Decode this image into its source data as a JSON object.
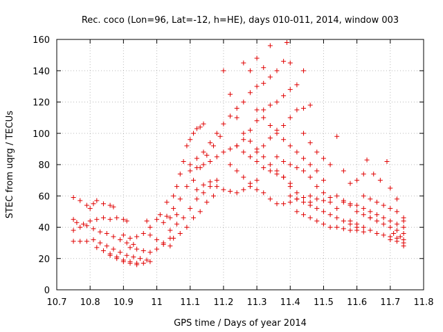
{
  "chart_data": {
    "type": "scatter",
    "title": "Rec. coco (Lon=96, Lat=-12, h=HE), days 010-011, 2014, window 003",
    "xlabel": "GPS time / Days of year 2014",
    "ylabel": "STEC from uqrg / TECUs",
    "xlim": [
      10.7,
      11.8
    ],
    "ylim": [
      0,
      160
    ],
    "xticks": [
      10.7,
      10.8,
      10.9,
      11,
      11.1,
      11.2,
      11.3,
      11.4,
      11.5,
      11.6,
      11.7,
      11.8
    ],
    "xtick_labels": [
      "10.7",
      "10.8",
      "10.9",
      "11",
      "11.1",
      "11.2",
      "11.3",
      "11.4",
      "11.5",
      "11.6",
      "11.7",
      "11.8"
    ],
    "yticks": [
      0,
      20,
      40,
      60,
      80,
      100,
      120,
      140,
      160
    ],
    "ytick_labels": [
      "0",
      "20",
      "40",
      "60",
      "80",
      "100",
      "120",
      "140",
      "160"
    ],
    "grid": true,
    "legend": "none",
    "marker": "plus",
    "color": "#e00000",
    "series": [
      {
        "points": [
          [
            10.75,
            59
          ],
          [
            10.77,
            57
          ],
          [
            10.79,
            54
          ],
          [
            10.81,
            55
          ],
          [
            10.8,
            52
          ],
          [
            10.82,
            57
          ],
          [
            10.84,
            55
          ],
          [
            10.86,
            54
          ],
          [
            10.87,
            53
          ],
          [
            10.75,
            45
          ],
          [
            10.76,
            43
          ],
          [
            10.78,
            42
          ],
          [
            10.8,
            44
          ],
          [
            10.82,
            45
          ],
          [
            10.84,
            46
          ],
          [
            10.86,
            45
          ],
          [
            10.88,
            46
          ],
          [
            10.9,
            45
          ],
          [
            10.91,
            44
          ],
          [
            10.75,
            38
          ],
          [
            10.77,
            40
          ],
          [
            10.79,
            41
          ],
          [
            10.81,
            39
          ],
          [
            10.83,
            37
          ],
          [
            10.85,
            36
          ],
          [
            10.87,
            34
          ],
          [
            10.89,
            32
          ],
          [
            10.91,
            30
          ],
          [
            10.93,
            29
          ],
          [
            10.75,
            31
          ],
          [
            10.77,
            31
          ],
          [
            10.79,
            31
          ],
          [
            10.81,
            32
          ],
          [
            10.83,
            30
          ],
          [
            10.85,
            28
          ],
          [
            10.87,
            26
          ],
          [
            10.89,
            24
          ],
          [
            10.91,
            22
          ],
          [
            10.93,
            21
          ],
          [
            10.95,
            20
          ],
          [
            10.86,
            23
          ],
          [
            10.88,
            21
          ],
          [
            10.9,
            19
          ],
          [
            10.92,
            18
          ],
          [
            10.94,
            17
          ],
          [
            10.96,
            17
          ],
          [
            10.98,
            18
          ],
          [
            10.97,
            19
          ],
          [
            10.82,
            27
          ],
          [
            10.84,
            25
          ],
          [
            10.86,
            22
          ],
          [
            10.88,
            20
          ],
          [
            10.9,
            18
          ],
          [
            10.92,
            17
          ],
          [
            10.94,
            16
          ],
          [
            10.9,
            35
          ],
          [
            10.92,
            33
          ],
          [
            10.94,
            34
          ],
          [
            10.96,
            36
          ],
          [
            10.98,
            35
          ],
          [
            11,
            32
          ],
          [
            11.02,
            30
          ],
          [
            11.04,
            28
          ],
          [
            10.92,
            27
          ],
          [
            10.94,
            26
          ],
          [
            10.96,
            25
          ],
          [
            10.98,
            24
          ],
          [
            11,
            26
          ],
          [
            11.02,
            29
          ],
          [
            11.04,
            33
          ],
          [
            10.97,
            44
          ],
          [
            10.98,
            40
          ],
          [
            11,
            45
          ],
          [
            11.02,
            43
          ],
          [
            11.04,
            46
          ],
          [
            11.06,
            48
          ],
          [
            11.01,
            48
          ],
          [
            11.03,
            56
          ],
          [
            11.05,
            60
          ],
          [
            11.06,
            66
          ],
          [
            11.07,
            74
          ],
          [
            11.08,
            82
          ],
          [
            11.09,
            92
          ],
          [
            11.1,
            96
          ],
          [
            11.11,
            100
          ],
          [
            11.12,
            103
          ],
          [
            11.13,
            104
          ],
          [
            11.14,
            106
          ],
          [
            11.03,
            47
          ],
          [
            11.05,
            52
          ],
          [
            11.07,
            58
          ],
          [
            11.09,
            66
          ],
          [
            11.11,
            70
          ],
          [
            11.13,
            78
          ],
          [
            11.15,
            86
          ],
          [
            11.17,
            92
          ],
          [
            11.19,
            98
          ],
          [
            11.04,
            38
          ],
          [
            11.06,
            42
          ],
          [
            11.08,
            46
          ],
          [
            11.1,
            52
          ],
          [
            11.12,
            58
          ],
          [
            11.14,
            62
          ],
          [
            11.16,
            66
          ],
          [
            11.18,
            70
          ],
          [
            11.05,
            33
          ],
          [
            11.07,
            36
          ],
          [
            11.09,
            40
          ],
          [
            11.11,
            46
          ],
          [
            11.13,
            50
          ],
          [
            11.15,
            56
          ],
          [
            11.17,
            60
          ],
          [
            11.1,
            80
          ],
          [
            11.12,
            84
          ],
          [
            11.14,
            88
          ],
          [
            11.16,
            94
          ],
          [
            11.18,
            100
          ],
          [
            11.2,
            106
          ],
          [
            11.22,
            111
          ],
          [
            11.24,
            116
          ],
          [
            11.26,
            120
          ],
          [
            11.28,
            126
          ],
          [
            11.3,
            130
          ],
          [
            11.32,
            132
          ],
          [
            11.34,
            136
          ],
          [
            11.1,
            76
          ],
          [
            11.12,
            78
          ],
          [
            11.14,
            80
          ],
          [
            11.16,
            82
          ],
          [
            11.18,
            85
          ],
          [
            11.2,
            88
          ],
          [
            11.22,
            90
          ],
          [
            11.24,
            92
          ],
          [
            11.12,
            64
          ],
          [
            11.14,
            67
          ],
          [
            11.16,
            69
          ],
          [
            11.18,
            66
          ],
          [
            11.2,
            64
          ],
          [
            11.22,
            63
          ],
          [
            11.24,
            62
          ],
          [
            11.26,
            64
          ],
          [
            11.28,
            66
          ],
          [
            11.3,
            70
          ],
          [
            11.2,
            140
          ],
          [
            11.22,
            125
          ],
          [
            11.24,
            110
          ],
          [
            11.26,
            100
          ],
          [
            11.28,
            95
          ],
          [
            11.3,
            90
          ],
          [
            11.32,
            85
          ],
          [
            11.34,
            80
          ],
          [
            11.36,
            76
          ],
          [
            11.38,
            72
          ],
          [
            11.4,
            68
          ],
          [
            11.26,
            145
          ],
          [
            11.28,
            140
          ],
          [
            11.3,
            148
          ],
          [
            11.32,
            142
          ],
          [
            11.34,
            156
          ],
          [
            11.36,
            140
          ],
          [
            11.38,
            146
          ],
          [
            11.39,
            158
          ],
          [
            11.4,
            145
          ],
          [
            11.24,
            92
          ],
          [
            11.26,
            96
          ],
          [
            11.28,
            102
          ],
          [
            11.3,
            108
          ],
          [
            11.32,
            115
          ],
          [
            11.34,
            118
          ],
          [
            11.36,
            120
          ],
          [
            11.38,
            124
          ],
          [
            11.4,
            128
          ],
          [
            11.42,
            131
          ],
          [
            11.44,
            140
          ],
          [
            11.3,
            115
          ],
          [
            11.32,
            110
          ],
          [
            11.34,
            105
          ],
          [
            11.36,
            100
          ],
          [
            11.38,
            96
          ],
          [
            11.4,
            92
          ],
          [
            11.42,
            88
          ],
          [
            11.44,
            84
          ],
          [
            11.46,
            80
          ],
          [
            11.48,
            76
          ],
          [
            11.5,
            70
          ],
          [
            11.26,
            88
          ],
          [
            11.28,
            85
          ],
          [
            11.3,
            82
          ],
          [
            11.32,
            78
          ],
          [
            11.34,
            76
          ],
          [
            11.36,
            74
          ],
          [
            11.38,
            72
          ],
          [
            11.4,
            66
          ],
          [
            11.42,
            62
          ],
          [
            11.44,
            59
          ],
          [
            11.46,
            56
          ],
          [
            11.22,
            80
          ],
          [
            11.24,
            76
          ],
          [
            11.26,
            72
          ],
          [
            11.28,
            68
          ],
          [
            11.3,
            64
          ],
          [
            11.32,
            62
          ],
          [
            11.34,
            58
          ],
          [
            11.36,
            55
          ],
          [
            11.38,
            55
          ],
          [
            11.4,
            56
          ],
          [
            11.42,
            58
          ],
          [
            11.3,
            88
          ],
          [
            11.32,
            92
          ],
          [
            11.34,
            97
          ],
          [
            11.36,
            102
          ],
          [
            11.38,
            105
          ],
          [
            11.4,
            110
          ],
          [
            11.42,
            115
          ],
          [
            11.44,
            116
          ],
          [
            11.46,
            118
          ],
          [
            11.36,
            85
          ],
          [
            11.38,
            82
          ],
          [
            11.4,
            80
          ],
          [
            11.42,
            78
          ],
          [
            11.44,
            76
          ],
          [
            11.46,
            72
          ],
          [
            11.48,
            66
          ],
          [
            11.5,
            62
          ],
          [
            11.52,
            56
          ],
          [
            11.54,
            52
          ],
          [
            11.4,
            60
          ],
          [
            11.42,
            58
          ],
          [
            11.44,
            56
          ],
          [
            11.46,
            54
          ],
          [
            11.48,
            52
          ],
          [
            11.5,
            50
          ],
          [
            11.52,
            48
          ],
          [
            11.54,
            46
          ],
          [
            11.56,
            44
          ],
          [
            11.58,
            42
          ],
          [
            11.6,
            40
          ],
          [
            11.42,
            50
          ],
          [
            11.44,
            48
          ],
          [
            11.46,
            46
          ],
          [
            11.48,
            44
          ],
          [
            11.5,
            42
          ],
          [
            11.52,
            40
          ],
          [
            11.54,
            40
          ],
          [
            11.56,
            39
          ],
          [
            11.58,
            38
          ],
          [
            11.6,
            38
          ],
          [
            11.62,
            37
          ],
          [
            11.44,
            100
          ],
          [
            11.46,
            94
          ],
          [
            11.48,
            88
          ],
          [
            11.5,
            84
          ],
          [
            11.52,
            80
          ],
          [
            11.54,
            98
          ],
          [
            11.56,
            76
          ],
          [
            11.58,
            68
          ],
          [
            11.46,
            60
          ],
          [
            11.48,
            58
          ],
          [
            11.5,
            57
          ],
          [
            11.52,
            59
          ],
          [
            11.54,
            60
          ],
          [
            11.56,
            57
          ],
          [
            11.58,
            55
          ],
          [
            11.6,
            54
          ],
          [
            11.62,
            52
          ],
          [
            11.64,
            50
          ],
          [
            11.56,
            56
          ],
          [
            11.58,
            54
          ],
          [
            11.6,
            50
          ],
          [
            11.62,
            48
          ],
          [
            11.64,
            46
          ],
          [
            11.66,
            44
          ],
          [
            11.68,
            42
          ],
          [
            11.7,
            40
          ],
          [
            11.72,
            38
          ],
          [
            11.74,
            36
          ],
          [
            11.58,
            44
          ],
          [
            11.6,
            42
          ],
          [
            11.62,
            40
          ],
          [
            11.64,
            38
          ],
          [
            11.66,
            36
          ],
          [
            11.68,
            35
          ],
          [
            11.7,
            34
          ],
          [
            11.72,
            33
          ],
          [
            11.74,
            32
          ],
          [
            11.6,
            70
          ],
          [
            11.62,
            74
          ],
          [
            11.63,
            83
          ],
          [
            11.65,
            74
          ],
          [
            11.67,
            70
          ],
          [
            11.69,
            82
          ],
          [
            11.7,
            65
          ],
          [
            11.72,
            58
          ],
          [
            11.62,
            60
          ],
          [
            11.64,
            58
          ],
          [
            11.66,
            56
          ],
          [
            11.68,
            54
          ],
          [
            11.7,
            52
          ],
          [
            11.72,
            50
          ],
          [
            11.74,
            46
          ],
          [
            11.64,
            46
          ],
          [
            11.66,
            48
          ],
          [
            11.68,
            46
          ],
          [
            11.7,
            44
          ],
          [
            11.72,
            42
          ],
          [
            11.74,
            40
          ],
          [
            11.74,
            44
          ],
          [
            11.7,
            32
          ],
          [
            11.72,
            31
          ],
          [
            11.74,
            30
          ],
          [
            11.74,
            28
          ],
          [
            11.73,
            34
          ],
          [
            11.71,
            36
          ]
        ]
      }
    ]
  }
}
